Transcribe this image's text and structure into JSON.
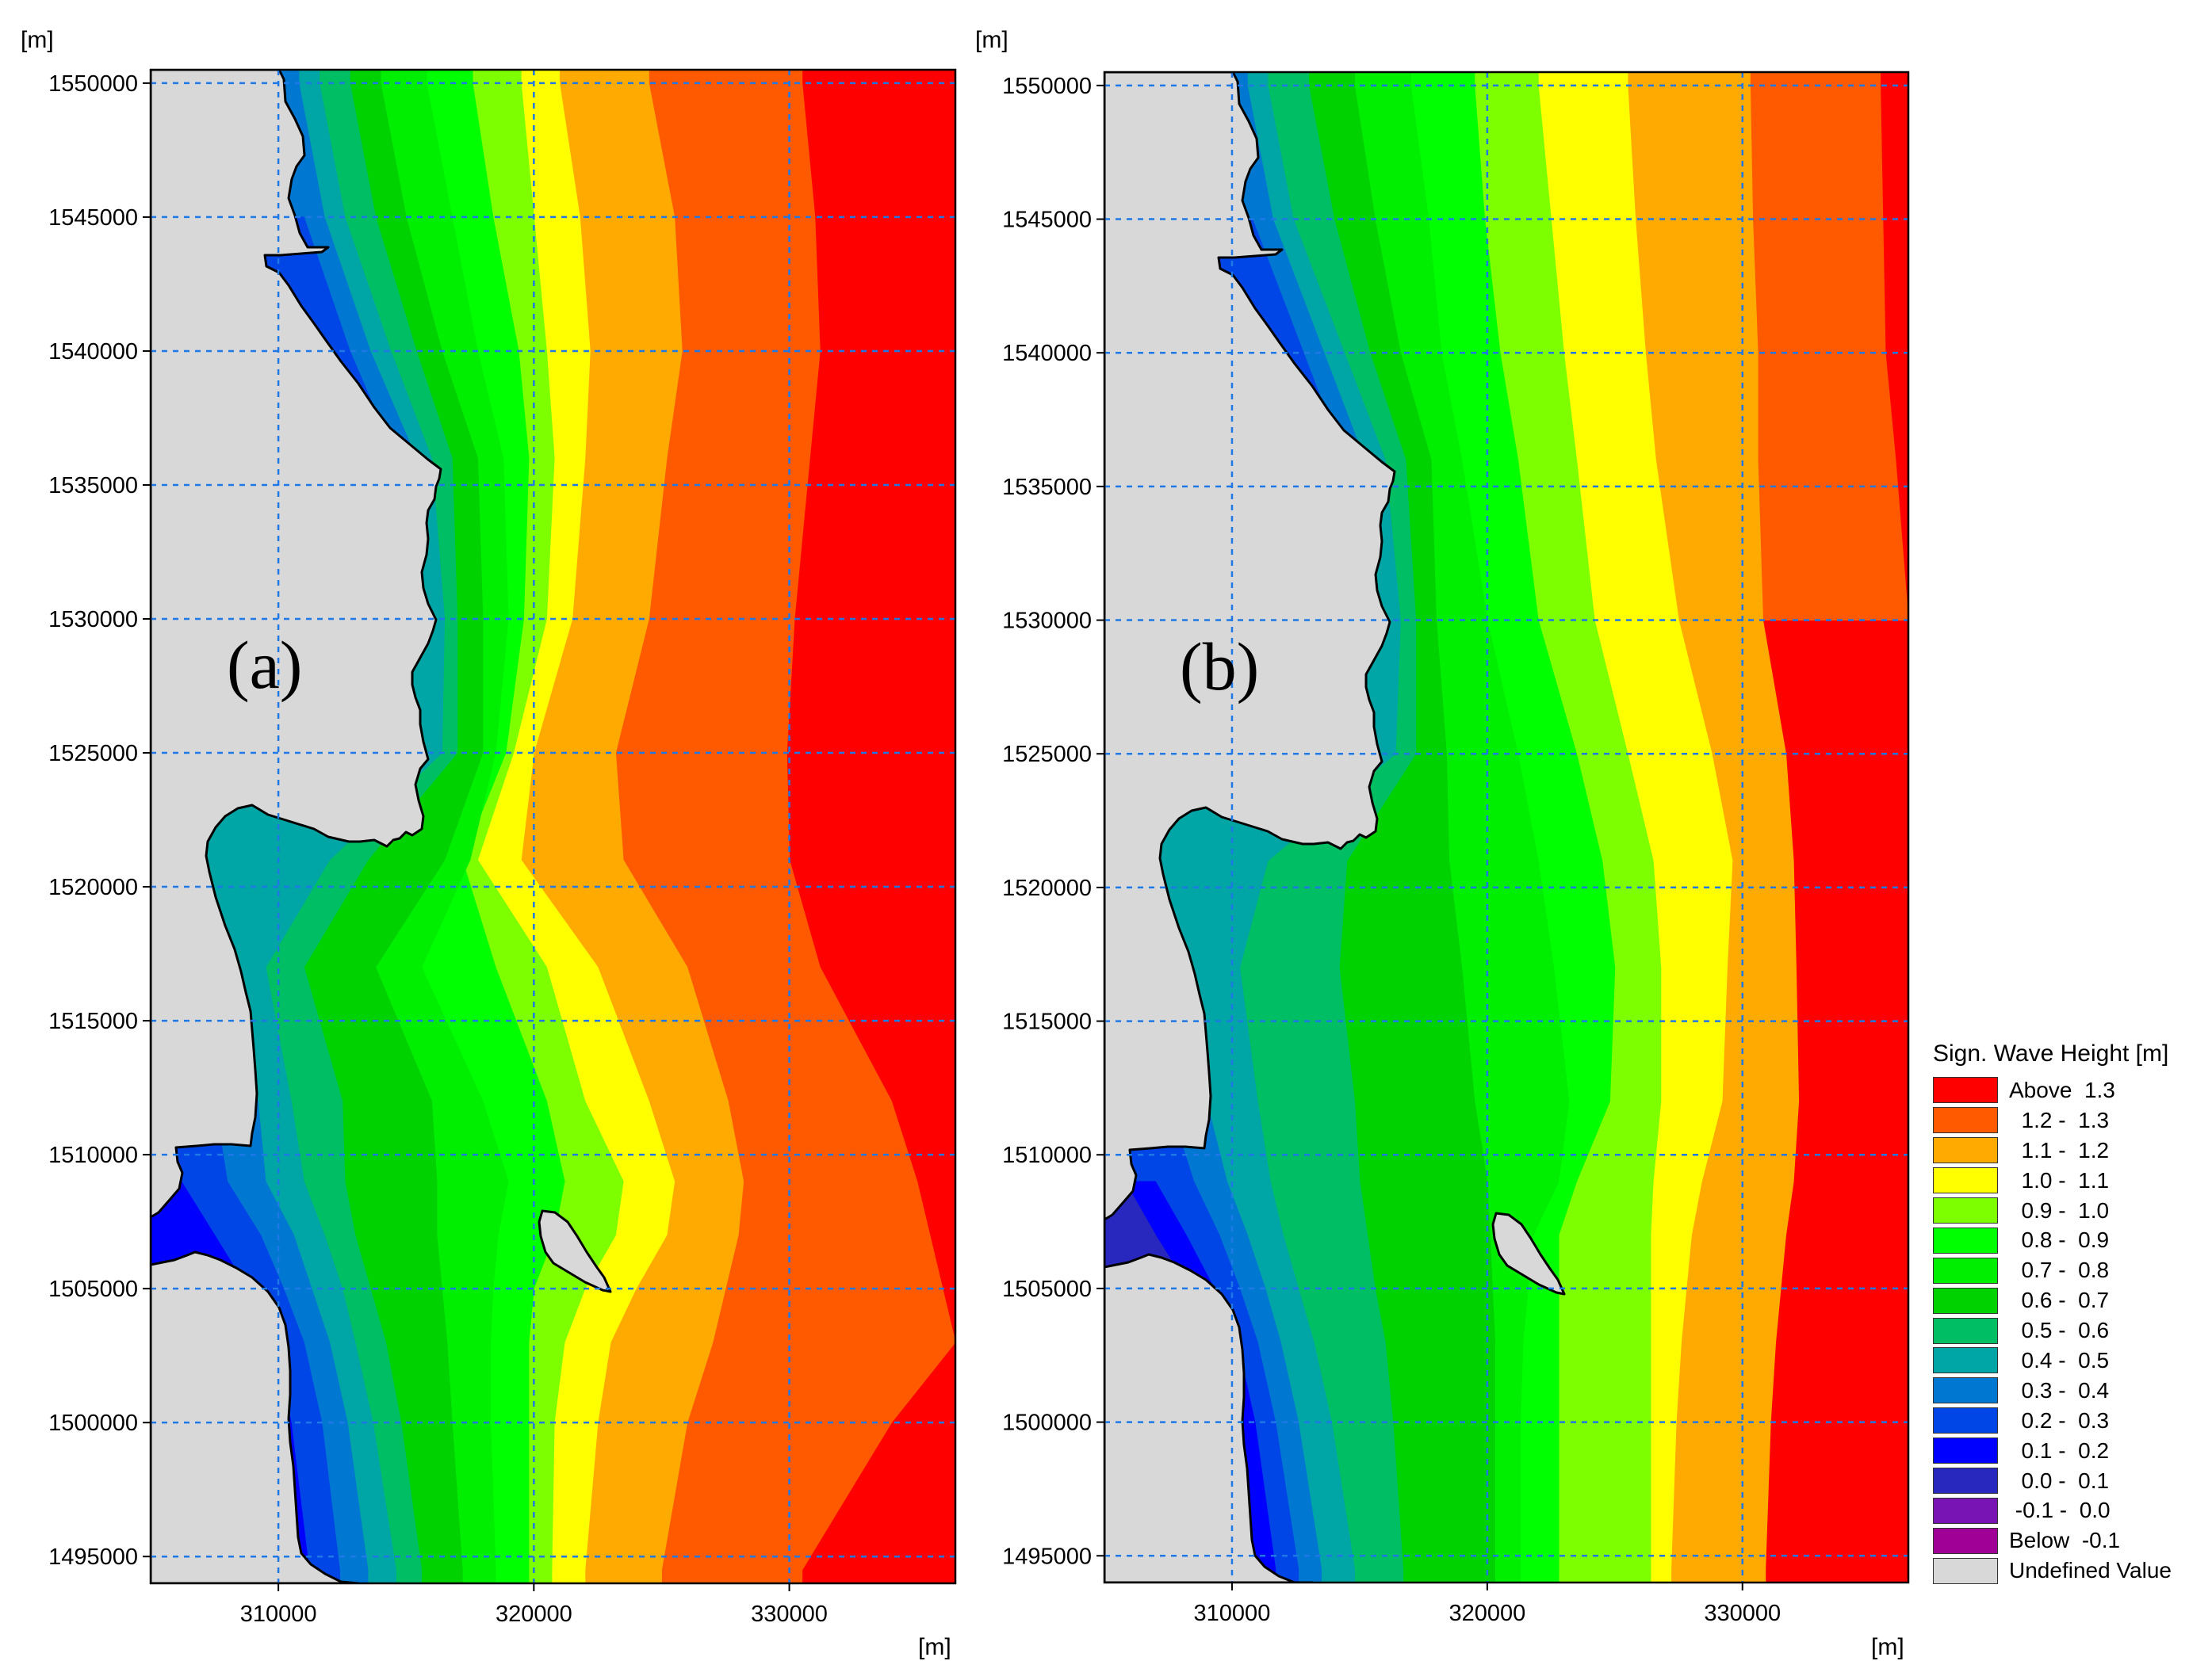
{
  "chart_data": [
    {
      "type": "heatmap",
      "panel_label": "(a)",
      "x_unit_label": "[m]",
      "y_unit_label": "[m]",
      "xlim": [
        305000,
        336500
      ],
      "ylim": [
        1494000,
        1550500
      ],
      "x_ticks": [
        310000,
        320000,
        330000
      ],
      "y_ticks": [
        1495000,
        1500000,
        1505000,
        1510000,
        1515000,
        1520000,
        1525000,
        1530000,
        1535000,
        1540000,
        1545000,
        1550000
      ],
      "grid": true,
      "contours_x_by_row": {
        "y": [
          1550000,
          1545000,
          1540000,
          1536000,
          1530000,
          1525000,
          1521000,
          1517000,
          1512000,
          1509000,
          1507000,
          1505000,
          1503000,
          1500000,
          1494500
        ],
        "0.2": [
          null,
          null,
          312000,
          313800,
          null,
          null,
          null,
          null,
          null,
          306200,
          307500,
          308800,
          309800,
          310500,
          311200
        ],
        "0.3": [
          null,
          311000,
          312800,
          314600,
          null,
          null,
          null,
          null,
          307500,
          308000,
          309300,
          310200,
          311000,
          311700,
          312400
        ],
        "0.4": [
          310800,
          311800,
          313600,
          315400,
          null,
          null,
          null,
          null,
          309200,
          309500,
          310600,
          311300,
          312000,
          312700,
          313500
        ],
        "0.5": [
          311600,
          312600,
          314400,
          316000,
          316500,
          316400,
          312000,
          309500,
          310500,
          311000,
          311800,
          312500,
          313000,
          313700,
          314600
        ],
        "0.6": [
          312800,
          313800,
          315400,
          316800,
          317000,
          317000,
          313500,
          311000,
          312500,
          312600,
          313000,
          313600,
          314200,
          314800,
          315600
        ],
        "0.7": [
          314000,
          315000,
          316400,
          317800,
          318000,
          318000,
          316500,
          313800,
          316000,
          316200,
          316200,
          316400,
          316600,
          316800,
          317200
        ],
        "0.8": [
          315800,
          316800,
          317800,
          318800,
          319000,
          318500,
          317500,
          315600,
          318000,
          319000,
          318600,
          318400,
          318300,
          318300,
          318500
        ],
        "0.9": [
          317600,
          318400,
          319400,
          319800,
          319600,
          318900,
          317200,
          318500,
          320500,
          321200,
          320800,
          320000,
          319800,
          319800,
          319800
        ],
        "1.0": [
          319500,
          320000,
          320500,
          320800,
          320500,
          319200,
          317800,
          320500,
          322000,
          323500,
          323200,
          322000,
          321200,
          320800,
          320700
        ],
        "1.1": [
          321000,
          321800,
          322200,
          322000,
          321500,
          320000,
          319500,
          322500,
          324500,
          325500,
          325200,
          324000,
          323000,
          322500,
          322000
        ],
        "1.2": [
          324500,
          325500,
          325800,
          325200,
          324500,
          323200,
          323500,
          326000,
          327600,
          328200,
          328000,
          327500,
          327000,
          326000,
          325000
        ],
        "1.3": [
          330500,
          331000,
          331200,
          330800,
          330200,
          329900,
          330000,
          331200,
          334000,
          335000,
          335500,
          336000,
          336500,
          334000,
          330500
        ]
      }
    },
    {
      "type": "heatmap",
      "panel_label": "(b)",
      "x_unit_label": "[m]",
      "y_unit_label": "[m]",
      "xlim": [
        305000,
        336500
      ],
      "ylim": [
        1494000,
        1550500
      ],
      "x_ticks": [
        310000,
        320000,
        330000
      ],
      "y_ticks": [
        1495000,
        1500000,
        1505000,
        1510000,
        1515000,
        1520000,
        1525000,
        1530000,
        1535000,
        1540000,
        1545000,
        1550000
      ],
      "grid": true,
      "contours_x_by_row": {
        "y": [
          1550000,
          1545000,
          1540000,
          1536000,
          1530000,
          1525000,
          1521000,
          1517000,
          1512000,
          1509000,
          1507000,
          1505000,
          1503000,
          1500000,
          1494500
        ],
        "0.1": [
          null,
          null,
          null,
          null,
          null,
          null,
          null,
          null,
          null,
          305800,
          307000,
          308300,
          309300,
          310000,
          310800
        ],
        "0.2": [
          null,
          null,
          312000,
          313500,
          null,
          null,
          null,
          null,
          null,
          307000,
          308200,
          309300,
          310200,
          310900,
          311700
        ],
        "0.3": [
          null,
          310800,
          312800,
          314400,
          null,
          null,
          null,
          null,
          307500,
          308500,
          309500,
          310300,
          311000,
          311700,
          312600
        ],
        "0.4": [
          310600,
          311600,
          313600,
          315200,
          null,
          null,
          null,
          null,
          309000,
          309800,
          310600,
          311300,
          311900,
          312600,
          313500
        ],
        "0.5": [
          311400,
          312400,
          314400,
          316000,
          316600,
          316400,
          311400,
          310300,
          311000,
          311500,
          312000,
          312600,
          313200,
          313900,
          314800
        ],
        "0.6": [
          313000,
          314000,
          315400,
          316800,
          317200,
          317200,
          314500,
          314200,
          314800,
          315000,
          315300,
          315600,
          316000,
          316300,
          316700
        ],
        "0.7": [
          314800,
          315600,
          316600,
          317800,
          318000,
          318400,
          318500,
          319000,
          319500,
          320000,
          320100,
          320200,
          320300,
          320300,
          320300
        ],
        "0.8": [
          317000,
          317700,
          318200,
          319000,
          320000,
          321200,
          322000,
          322600,
          323200,
          322800,
          321800,
          321600,
          321400,
          321300,
          321300
        ],
        "0.9": [
          319500,
          319900,
          320500,
          321200,
          322000,
          323500,
          324500,
          325000,
          324800,
          323500,
          322800,
          322800,
          322800,
          322800,
          322800
        ],
        "1.0": [
          322000,
          322500,
          323000,
          323500,
          324200,
          325500,
          326500,
          326800,
          326800,
          326500,
          326400,
          326400,
          326400,
          326400,
          326400
        ],
        "1.1": [
          325500,
          325800,
          326200,
          326600,
          327500,
          328800,
          329600,
          329400,
          329200,
          328400,
          328000,
          327800,
          327600,
          327400,
          327200
        ],
        "1.2": [
          330300,
          330400,
          330600,
          330600,
          330800,
          331700,
          332000,
          332100,
          332200,
          332000,
          331700,
          331500,
          331300,
          331100,
          330900
        ],
        "1.3": [
          335400,
          335500,
          335600,
          336000,
          336500,
          null,
          null,
          null,
          null,
          null,
          null,
          null,
          null,
          null,
          null
        ]
      }
    }
  ],
  "legend": {
    "title": "Sign. Wave Height [m]",
    "entries": [
      {
        "label": "Above  1.3",
        "color": "#ff0000"
      },
      {
        "label": "  1.2 -  1.3",
        "color": "#ff5a00"
      },
      {
        "label": "  1.1 -  1.2",
        "color": "#ffaa00"
      },
      {
        "label": "  1.0 -  1.1",
        "color": "#ffff00"
      },
      {
        "label": "  0.9 -  1.0",
        "color": "#7dff00"
      },
      {
        "label": "  0.8 -  0.9",
        "color": "#00ff00"
      },
      {
        "label": "  0.7 -  0.8",
        "color": "#00ee00"
      },
      {
        "label": "  0.6 -  0.7",
        "color": "#00d200"
      },
      {
        "label": "  0.5 -  0.6",
        "color": "#00be64"
      },
      {
        "label": "  0.4 -  0.5",
        "color": "#00a5a5"
      },
      {
        "label": "  0.3 -  0.4",
        "color": "#0078d2"
      },
      {
        "label": "  0.2 -  0.3",
        "color": "#0046e6"
      },
      {
        "label": "  0.1 -  0.2",
        "color": "#0000ff"
      },
      {
        "label": "  0.0 -  0.1",
        "color": "#2828be"
      },
      {
        "label": " -0.1 -  0.0",
        "color": "#7814b4"
      },
      {
        "label": "Below  -0.1",
        "color": "#a00096"
      },
      {
        "label": "Undefined Value",
        "color": "#d8d8d8"
      }
    ]
  }
}
